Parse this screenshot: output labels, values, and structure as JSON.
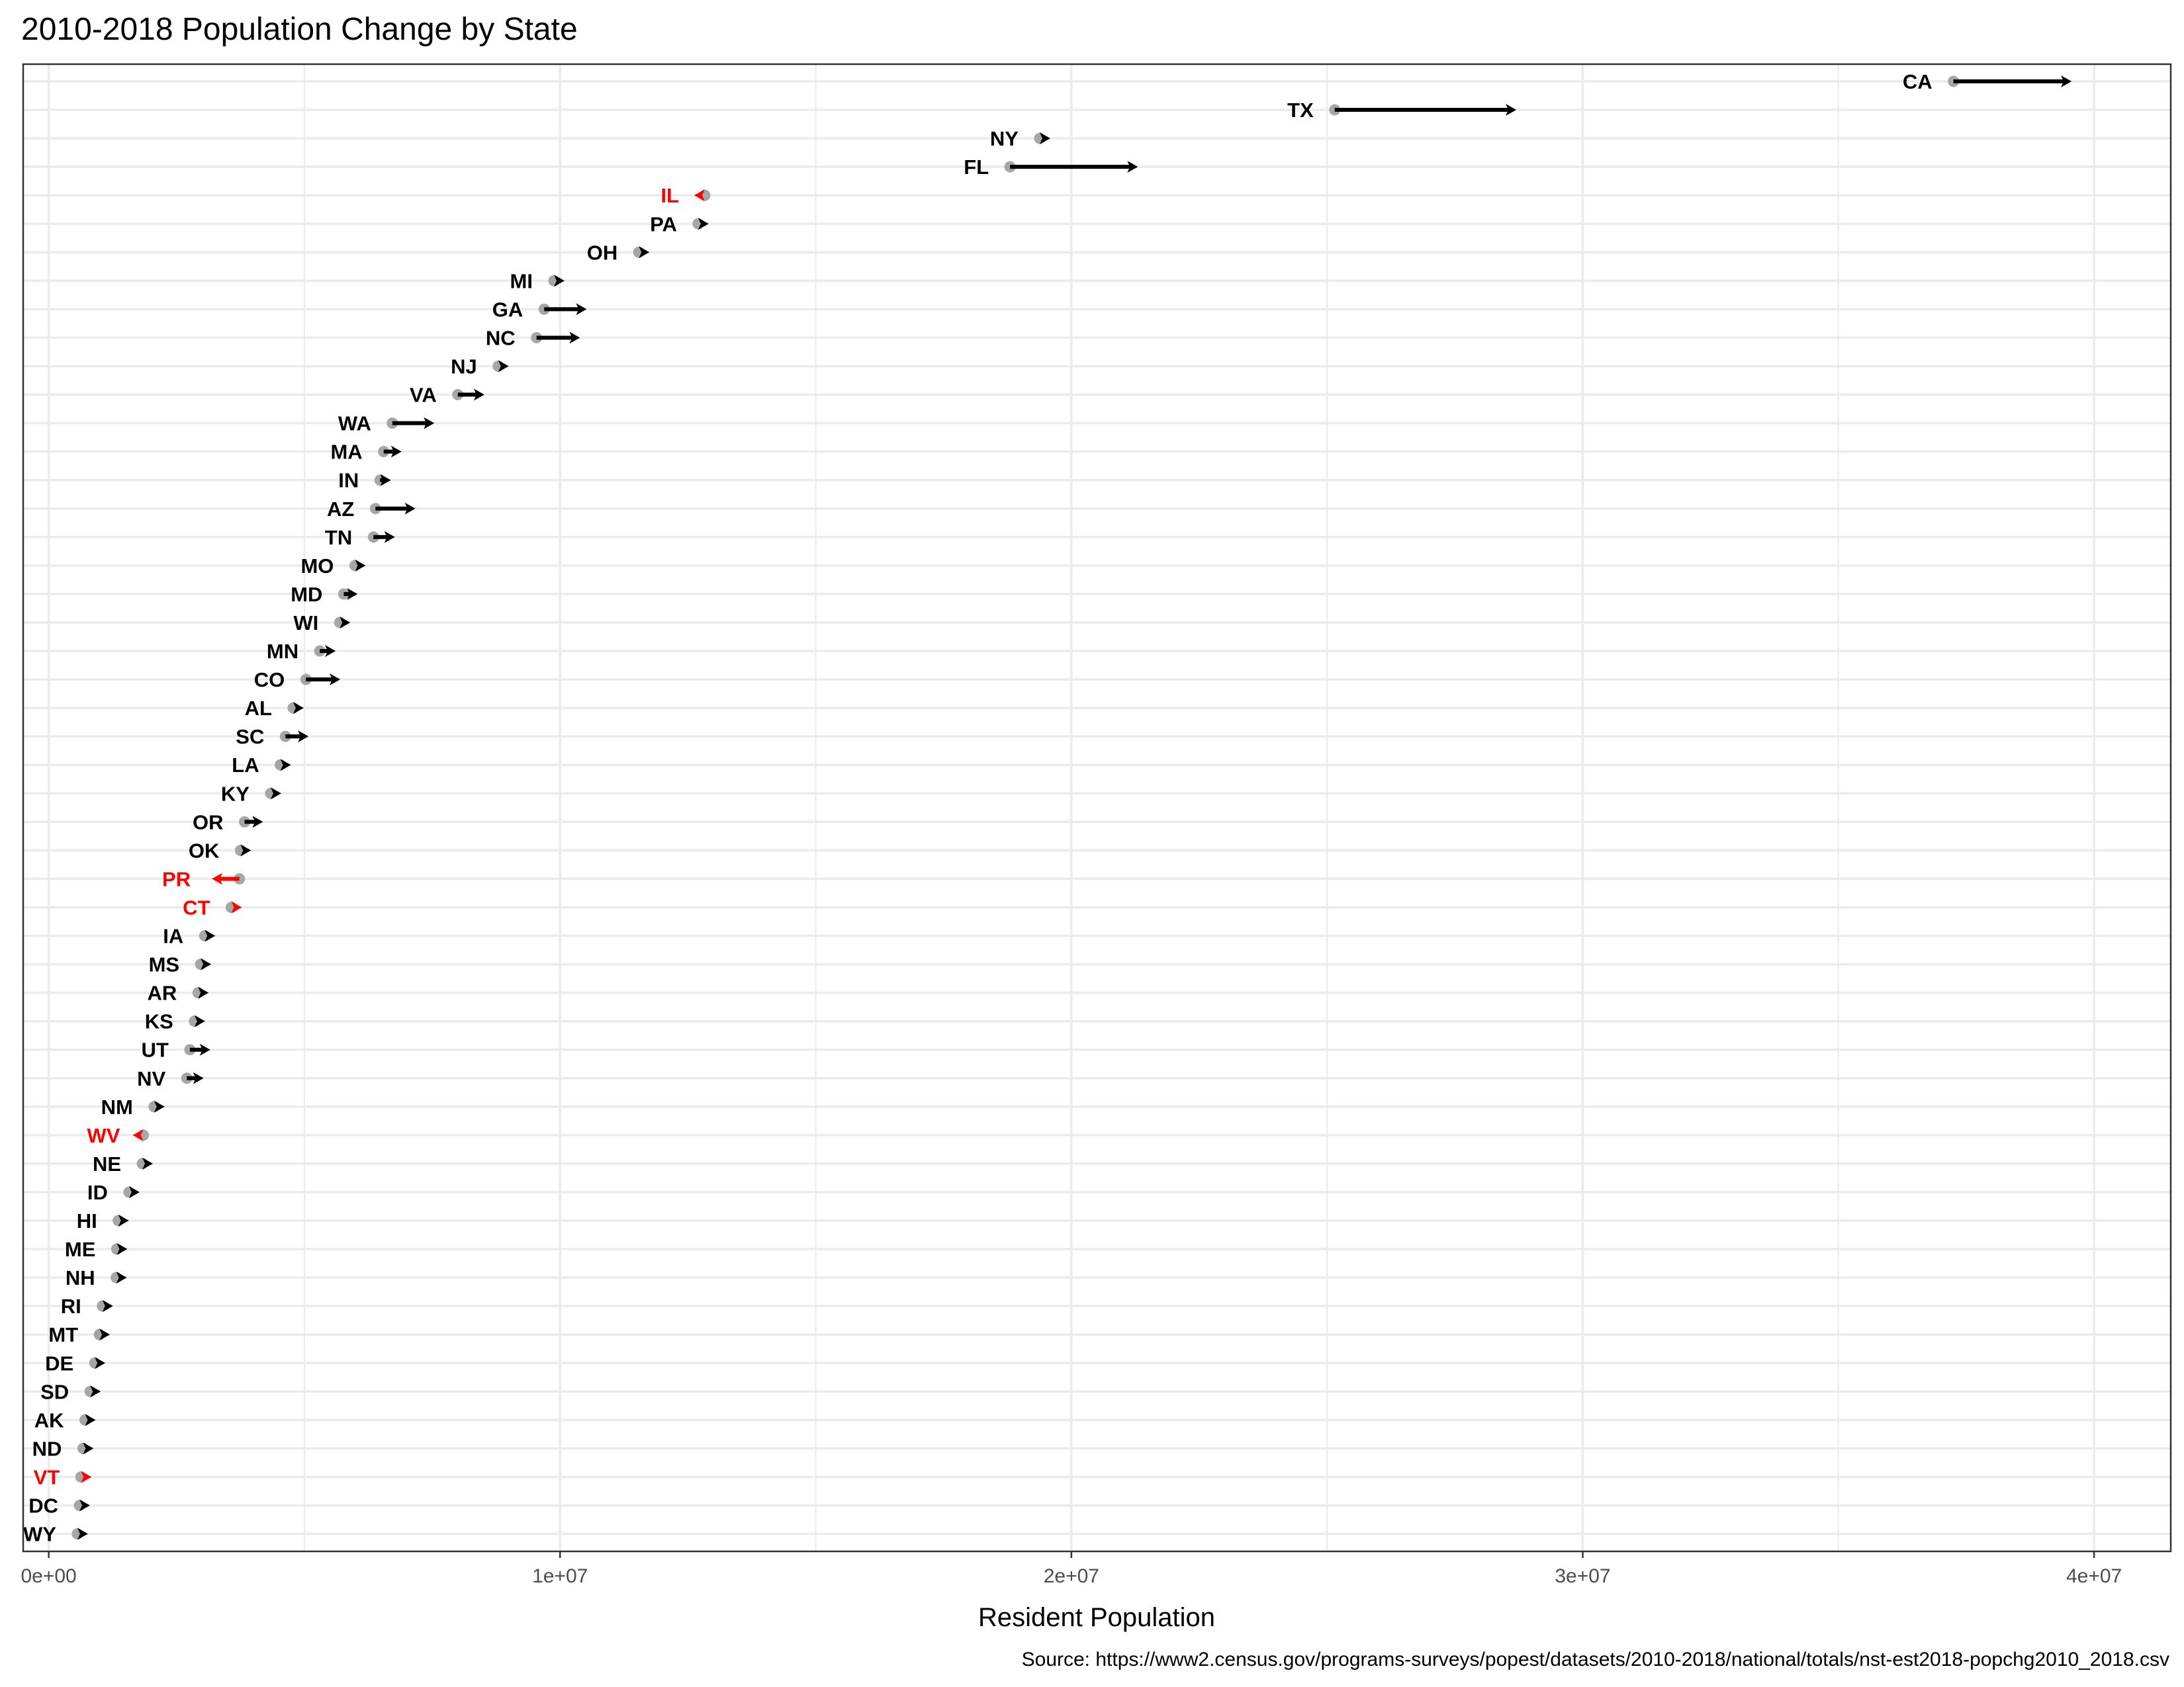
{
  "chart_data": {
    "type": "arrow-dot",
    "title": "2010-2018 Population Change by State",
    "xlabel": "Resident Population",
    "ylabel": "",
    "caption": "Source: https://www2.census.gov/programs-surveys/popest/datasets/2010-2018/national/totals/nst-est2018-popchg2010_2018.csv",
    "xlim": [
      -500000,
      41500000
    ],
    "x_ticks": [
      0,
      10000000,
      20000000,
      30000000,
      40000000
    ],
    "x_tick_labels": [
      "0e+00",
      "1e+07",
      "2e+07",
      "3e+07",
      "4e+07"
    ],
    "grid": true,
    "colors": {
      "increase": "#000000",
      "decrease": "#ff0000",
      "start_point": "#a6a6a6",
      "grid": "#ebebeb",
      "panel_border": "#333333",
      "tick_text": "#4d4d4d"
    },
    "states": [
      {
        "state": "CA",
        "pop_2010": 37250000,
        "pop_2018": 39560000
      },
      {
        "state": "TX",
        "pop_2010": 25150000,
        "pop_2018": 28700000
      },
      {
        "state": "NY",
        "pop_2010": 19380000,
        "pop_2018": 19540000
      },
      {
        "state": "FL",
        "pop_2010": 18800000,
        "pop_2018": 21300000
      },
      {
        "state": "IL",
        "pop_2010": 12830000,
        "pop_2018": 12740000
      },
      {
        "state": "PA",
        "pop_2010": 12700000,
        "pop_2018": 12810000
      },
      {
        "state": "OH",
        "pop_2010": 11540000,
        "pop_2018": 11690000
      },
      {
        "state": "MI",
        "pop_2010": 9880000,
        "pop_2018": 10000000
      },
      {
        "state": "GA",
        "pop_2010": 9690000,
        "pop_2018": 10520000
      },
      {
        "state": "NC",
        "pop_2010": 9540000,
        "pop_2018": 10390000
      },
      {
        "state": "NJ",
        "pop_2010": 8790000,
        "pop_2018": 8910000
      },
      {
        "state": "VA",
        "pop_2010": 8000000,
        "pop_2018": 8520000
      },
      {
        "state": "WA",
        "pop_2010": 6720000,
        "pop_2018": 7540000
      },
      {
        "state": "MA",
        "pop_2010": 6550000,
        "pop_2018": 6900000
      },
      {
        "state": "IN",
        "pop_2010": 6480000,
        "pop_2018": 6690000
      },
      {
        "state": "AZ",
        "pop_2010": 6390000,
        "pop_2018": 7170000
      },
      {
        "state": "TN",
        "pop_2010": 6350000,
        "pop_2018": 6770000
      },
      {
        "state": "MO",
        "pop_2010": 5990000,
        "pop_2018": 6130000
      },
      {
        "state": "MD",
        "pop_2010": 5770000,
        "pop_2018": 6040000
      },
      {
        "state": "WI",
        "pop_2010": 5690000,
        "pop_2018": 5810000
      },
      {
        "state": "MN",
        "pop_2010": 5300000,
        "pop_2018": 5610000
      },
      {
        "state": "CO",
        "pop_2010": 5030000,
        "pop_2018": 5700000
      },
      {
        "state": "AL",
        "pop_2010": 4780000,
        "pop_2018": 4890000
      },
      {
        "state": "SC",
        "pop_2010": 4630000,
        "pop_2018": 5080000
      },
      {
        "state": "LA",
        "pop_2010": 4530000,
        "pop_2018": 4660000
      },
      {
        "state": "KY",
        "pop_2010": 4340000,
        "pop_2018": 4470000
      },
      {
        "state": "OR",
        "pop_2010": 3830000,
        "pop_2018": 4190000
      },
      {
        "state": "OK",
        "pop_2010": 3750000,
        "pop_2018": 3940000
      },
      {
        "state": "PR",
        "pop_2010": 3730000,
        "pop_2018": 3190000
      },
      {
        "state": "CT",
        "pop_2010": 3570000,
        "pop_2018": 3570000
      },
      {
        "state": "IA",
        "pop_2010": 3050000,
        "pop_2018": 3160000
      },
      {
        "state": "MS",
        "pop_2010": 2970000,
        "pop_2018": 2990000
      },
      {
        "state": "AR",
        "pop_2010": 2920000,
        "pop_2018": 3010000
      },
      {
        "state": "KS",
        "pop_2010": 2850000,
        "pop_2018": 2910000
      },
      {
        "state": "UT",
        "pop_2010": 2760000,
        "pop_2018": 3160000
      },
      {
        "state": "NV",
        "pop_2010": 2700000,
        "pop_2018": 3030000
      },
      {
        "state": "NM",
        "pop_2010": 2060000,
        "pop_2018": 2100000
      },
      {
        "state": "WV",
        "pop_2010": 1850000,
        "pop_2018": 1810000
      },
      {
        "state": "NE",
        "pop_2010": 1830000,
        "pop_2018": 1930000
      },
      {
        "state": "ID",
        "pop_2010": 1570000,
        "pop_2018": 1750000
      },
      {
        "state": "HI",
        "pop_2010": 1360000,
        "pop_2018": 1420000
      },
      {
        "state": "ME",
        "pop_2010": 1330000,
        "pop_2018": 1340000
      },
      {
        "state": "NH",
        "pop_2010": 1320000,
        "pop_2018": 1360000
      },
      {
        "state": "RI",
        "pop_2010": 1050000,
        "pop_2018": 1060000
      },
      {
        "state": "MT",
        "pop_2010": 990000,
        "pop_2018": 1060000
      },
      {
        "state": "DE",
        "pop_2010": 900000,
        "pop_2018": 970000
      },
      {
        "state": "SD",
        "pop_2010": 810000,
        "pop_2018": 880000
      },
      {
        "state": "AK",
        "pop_2010": 710000,
        "pop_2018": 740000
      },
      {
        "state": "ND",
        "pop_2010": 670000,
        "pop_2018": 760000
      },
      {
        "state": "VT",
        "pop_2010": 630000,
        "pop_2018": 630000
      },
      {
        "state": "DC",
        "pop_2010": 600000,
        "pop_2018": 700000
      },
      {
        "state": "WY",
        "pop_2010": 560000,
        "pop_2018": 580000
      }
    ]
  }
}
